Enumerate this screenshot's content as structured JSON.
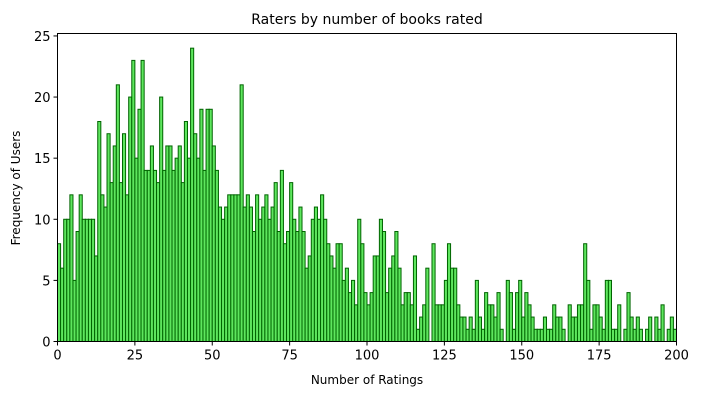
{
  "chart_data": {
    "type": "bar",
    "title": "Raters by number of books rated",
    "xlabel": "Number of Ratings",
    "ylabel": "Frequency of Users",
    "xlim": [
      0,
      200
    ],
    "ylim": [
      0,
      25.2
    ],
    "xticks": [
      0,
      25,
      50,
      75,
      100,
      125,
      150,
      175,
      200
    ],
    "yticks": [
      0,
      5,
      10,
      15,
      20,
      25
    ],
    "grid": false,
    "legend": "none",
    "bar_fill": "#5ee65e",
    "bar_edge": "#006400",
    "x": [
      1,
      2,
      3,
      4,
      5,
      6,
      7,
      8,
      9,
      10,
      11,
      12,
      13,
      14,
      15,
      16,
      17,
      18,
      19,
      20,
      21,
      22,
      23,
      24,
      25,
      26,
      27,
      28,
      29,
      30,
      31,
      32,
      33,
      34,
      35,
      36,
      37,
      38,
      39,
      40,
      41,
      42,
      43,
      44,
      45,
      46,
      47,
      48,
      49,
      50,
      51,
      52,
      53,
      54,
      55,
      56,
      57,
      58,
      59,
      60,
      61,
      62,
      63,
      64,
      65,
      66,
      67,
      68,
      69,
      70,
      71,
      72,
      73,
      74,
      75,
      76,
      77,
      78,
      79,
      80,
      81,
      82,
      83,
      84,
      85,
      86,
      87,
      88,
      89,
      90,
      91,
      92,
      93,
      94,
      95,
      96,
      97,
      98,
      99,
      100,
      101,
      102,
      103,
      104,
      105,
      106,
      107,
      108,
      109,
      110,
      111,
      112,
      113,
      114,
      115,
      116,
      117,
      118,
      119,
      120,
      121,
      122,
      123,
      124,
      125,
      126,
      127,
      128,
      129,
      130,
      131,
      132,
      133,
      134,
      135,
      136,
      137,
      138,
      139,
      140,
      141,
      142,
      143,
      144,
      145,
      146,
      147,
      148,
      149,
      150,
      151,
      152,
      153,
      154,
      155,
      156,
      157,
      158,
      159,
      160,
      161,
      162,
      163,
      164,
      165,
      166,
      167,
      168,
      169,
      170,
      171,
      172,
      173,
      174,
      175,
      176,
      177,
      178,
      179,
      180,
      181,
      182,
      183,
      184,
      185,
      186,
      187,
      188,
      189,
      190,
      191,
      192,
      193,
      194,
      195,
      196,
      197,
      198,
      199,
      200
    ],
    "values": [
      8,
      6,
      10,
      10,
      12,
      5,
      9,
      12,
      10,
      10,
      10,
      10,
      7,
      18,
      12,
      11,
      17,
      13,
      16,
      21,
      13,
      17,
      12,
      20,
      23,
      15,
      19,
      23,
      14,
      14,
      16,
      14,
      13,
      20,
      14,
      16,
      16,
      14,
      15,
      16,
      13,
      18,
      15,
      24,
      17,
      15,
      19,
      14,
      19,
      19,
      16,
      14,
      11,
      10,
      11,
      12,
      12,
      12,
      12,
      21,
      11,
      12,
      11,
      9,
      12,
      10,
      11,
      12,
      10,
      11,
      13,
      9,
      14,
      8,
      9,
      13,
      10,
      9,
      11,
      9,
      6,
      7,
      10,
      11,
      10,
      12,
      10,
      8,
      7,
      6,
      8,
      8,
      5,
      6,
      4,
      5,
      3,
      10,
      8,
      4,
      3,
      4,
      7,
      7,
      10,
      9,
      4,
      6,
      7,
      9,
      6,
      3,
      4,
      4,
      3,
      7,
      1,
      2,
      3,
      6,
      0,
      8,
      3,
      3,
      3,
      5,
      8,
      6,
      6,
      3,
      2,
      2,
      1,
      2,
      1,
      5,
      2,
      1,
      4,
      3,
      3,
      2,
      4,
      1,
      0,
      5,
      4,
      1,
      4,
      5,
      2,
      4,
      3,
      2,
      1,
      1,
      1,
      2,
      1,
      1,
      3,
      2,
      2,
      1,
      0,
      3,
      2,
      2,
      3,
      3,
      8,
      5,
      1,
      3,
      3,
      2,
      1,
      5,
      5,
      1,
      1,
      3,
      0,
      1,
      4,
      2,
      1,
      2,
      1,
      0,
      1,
      2,
      0,
      2,
      1,
      3,
      0,
      1,
      2,
      1
    ]
  }
}
